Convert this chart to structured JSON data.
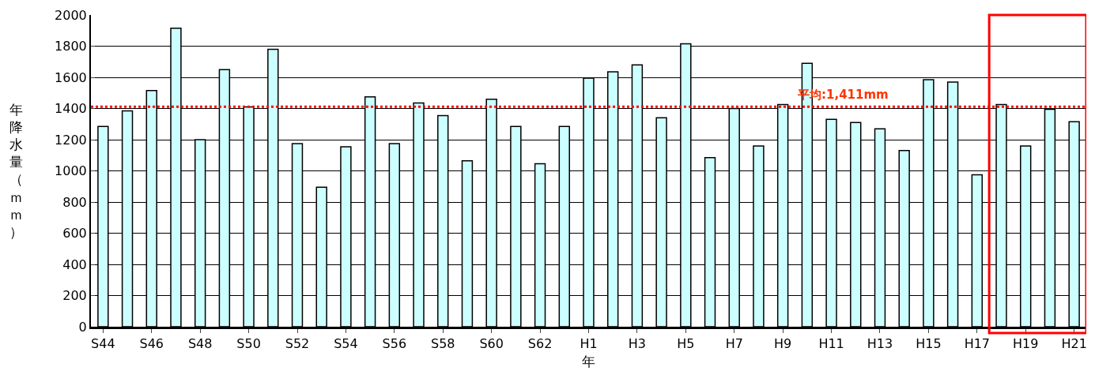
{
  "chart_data": {
    "type": "bar",
    "xlabel": "年",
    "ylabel": "年降水量（ｍｍ）",
    "categories": [
      "S44",
      null,
      "S46",
      null,
      "S48",
      null,
      "S50",
      null,
      "S52",
      null,
      "S54",
      null,
      "S56",
      null,
      "S58",
      null,
      "S60",
      null,
      "S62",
      null,
      "H1",
      null,
      "H3",
      null,
      "H5",
      null,
      "H7",
      null,
      "H9",
      null,
      "H11",
      null,
      "H13",
      null,
      "H15",
      null,
      "H17",
      null,
      "H19",
      null,
      "H21"
    ],
    "values": [
      1285,
      1385,
      1515,
      1915,
      1200,
      1650,
      1410,
      1780,
      1175,
      895,
      1155,
      1475,
      1175,
      1435,
      1355,
      1065,
      1460,
      1285,
      1045,
      1285,
      1595,
      1635,
      1680,
      1340,
      1815,
      1085,
      1400,
      1160,
      1425,
      1690,
      1330,
      1310,
      1270,
      1130,
      1585,
      1570,
      975,
      1425,
      1160,
      1395,
      1315
    ],
    "color": "#ccffff",
    "ylim": [
      0,
      2000
    ],
    "yticks": [
      0,
      200,
      400,
      600,
      800,
      1000,
      1200,
      1400,
      1600,
      1800,
      2000
    ],
    "grid": "y",
    "ref_lines": [
      {
        "axis": "y",
        "value": 1411,
        "label": "平均:1,411mm",
        "color": "#ff0000",
        "line_style": "dotted"
      }
    ]
  }
}
